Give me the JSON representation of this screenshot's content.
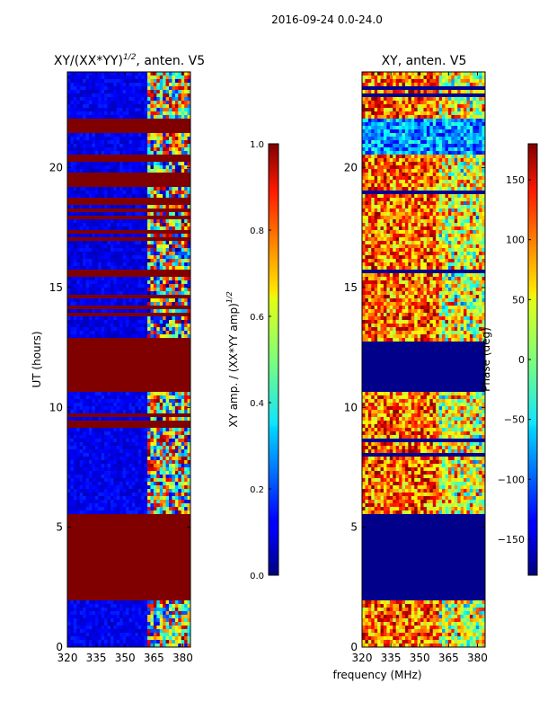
{
  "suptitle": "2016-09-24 0.0-24.0",
  "chart_data": [
    {
      "type": "heatmap",
      "title_main": "XY/(XX*YY)",
      "title_sup": "1/2",
      "title_tail": ", anten. V5",
      "ylabel": "UT (hours)",
      "xlabel": "",
      "xlim": [
        320,
        384
      ],
      "ylim": [
        0,
        24
      ],
      "xticks": [
        320,
        335,
        350,
        365,
        380
      ],
      "yticks": [
        0,
        5,
        10,
        15,
        20
      ],
      "colorbar": {
        "label_main": "XY amp. / (XX*YY amp)",
        "label_sup": "1/2",
        "range": [
          0.0,
          1.0
        ],
        "ticks": [
          "0.0",
          "0.2",
          "0.4",
          "0.6",
          "0.8",
          "1.0"
        ],
        "colormap": "jet"
      },
      "bands": [
        {
          "y0": 0.0,
          "y1": 1.9,
          "state": "low"
        },
        {
          "y0": 1.9,
          "y1": 5.5,
          "state": "saturated"
        },
        {
          "y0": 5.5,
          "y1": 9.2,
          "state": "low"
        },
        {
          "y0": 9.2,
          "y1": 9.8,
          "state": "mixed"
        },
        {
          "y0": 9.8,
          "y1": 10.7,
          "state": "low"
        },
        {
          "y0": 10.7,
          "y1": 12.8,
          "state": "saturated"
        },
        {
          "y0": 12.8,
          "y1": 20.5,
          "state": "mixed"
        },
        {
          "y0": 20.5,
          "y1": 21.5,
          "state": "low"
        },
        {
          "y0": 21.5,
          "y1": 22.0,
          "state": "saturated"
        },
        {
          "y0": 22.0,
          "y1": 24.0,
          "state": "low"
        }
      ]
    },
    {
      "type": "heatmap",
      "title_main": "XY, anten. V5",
      "title_sup": "",
      "title_tail": "",
      "ylabel": "",
      "xlabel": "frequency (MHz)",
      "xlim": [
        320,
        384
      ],
      "ylim": [
        0,
        24
      ],
      "xticks": [
        320,
        335,
        350,
        365,
        380
      ],
      "yticks": [
        0,
        5,
        10,
        15,
        20
      ],
      "colorbar": {
        "label_main": "Phase (deg)",
        "label_sup": "",
        "range": [
          -180,
          180
        ],
        "ticks": [
          "−150",
          "−100",
          "−50",
          "0",
          "50",
          "100",
          "150"
        ],
        "colormap": "jet"
      },
      "bands": [
        {
          "y0": 0.0,
          "y1": 1.9,
          "state": "phase"
        },
        {
          "y0": 1.9,
          "y1": 5.5,
          "state": "flat"
        },
        {
          "y0": 5.5,
          "y1": 9.8,
          "state": "phase"
        },
        {
          "y0": 9.8,
          "y1": 10.7,
          "state": "phase"
        },
        {
          "y0": 10.7,
          "y1": 12.8,
          "state": "flat"
        },
        {
          "y0": 12.8,
          "y1": 20.5,
          "state": "phase"
        },
        {
          "y0": 20.5,
          "y1": 22.0,
          "state": "phase-blue"
        },
        {
          "y0": 22.0,
          "y1": 24.0,
          "state": "phase"
        }
      ]
    }
  ]
}
